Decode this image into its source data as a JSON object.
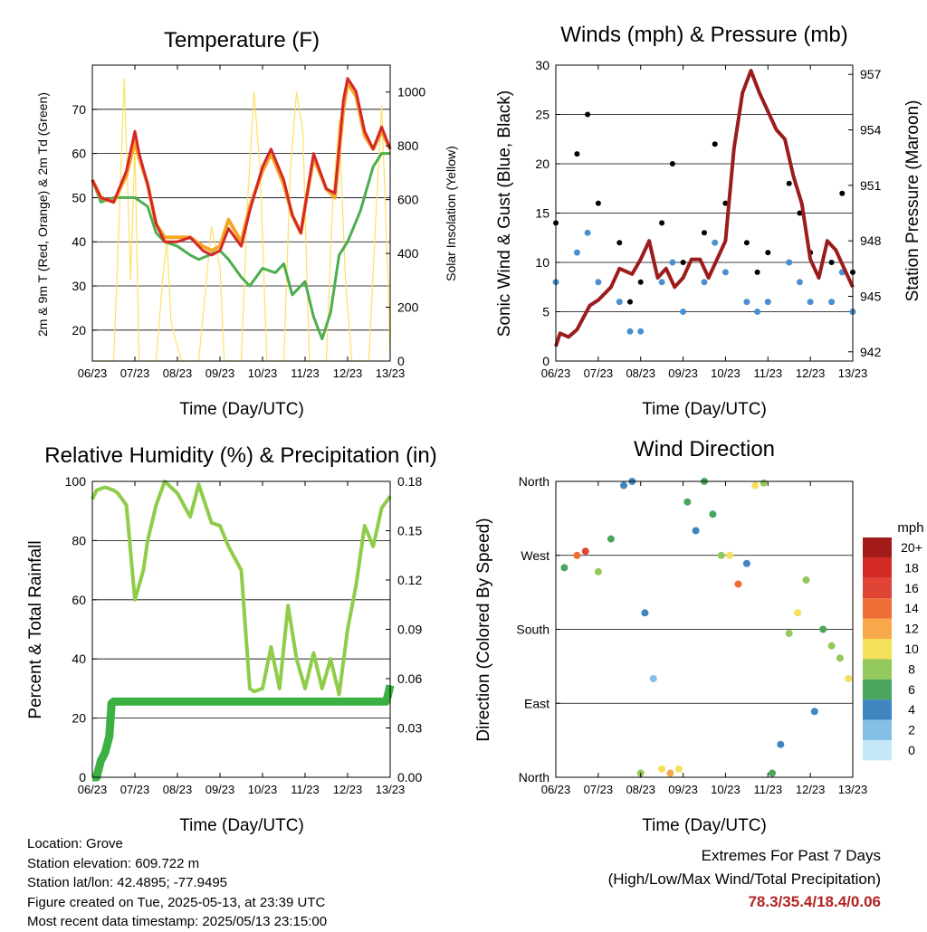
{
  "x_ticks": [
    "06/23",
    "07/23",
    "08/23",
    "09/23",
    "10/23",
    "11/23",
    "12/23",
    "13/23"
  ],
  "x_title": "Time (Day/UTC)",
  "charts": {
    "temperature": {
      "title": "Temperature (F)",
      "ylabel": "2m & 9m T (Red, Orange) & 2m Td (Green)",
      "y2label": "Solar Insolation (Yellow)",
      "yticks": [
        "20",
        "30",
        "40",
        "50",
        "60",
        "70"
      ],
      "y2ticks": [
        "0",
        "200",
        "400",
        "600",
        "800",
        "1000"
      ]
    },
    "winds": {
      "title": "Winds (mph) & Pressure (mb)",
      "ylabel": "Sonic Wind & Gust (Blue, Black)",
      "y2label": "Station Pressure (Maroon)",
      "yticks": [
        "0",
        "5",
        "10",
        "15",
        "20",
        "25",
        "30"
      ],
      "y2ticks": [
        "942",
        "945",
        "948",
        "951",
        "954",
        "957"
      ]
    },
    "humidity": {
      "title": "Relative Humidity (%) & Precipitation (in)",
      "ylabel": "Percent & Total Rainfall",
      "yticks": [
        "0",
        "20",
        "40",
        "60",
        "80",
        "100"
      ],
      "y2ticks": [
        "0.00",
        "0.03",
        "0.06",
        "0.09",
        "0.12",
        "0.15",
        "0.18"
      ]
    },
    "direction": {
      "title": "Wind Direction",
      "ylabel": "Direction (Colored By Speed)",
      "yticks": [
        "North",
        "East",
        "South",
        "West",
        "North"
      ],
      "legend_title": "mph",
      "legend_labels": [
        "20+",
        "18",
        "16",
        "14",
        "12",
        "10",
        "8",
        "6",
        "4",
        "2",
        "0"
      ],
      "legend_colors": [
        "#a31a1a",
        "#d42a25",
        "#e04434",
        "#ef6d37",
        "#f7a84a",
        "#f4e05a",
        "#93c95a",
        "#4aa55d",
        "#3f86c1",
        "#84c0e6",
        "#c6e7f7"
      ]
    }
  },
  "chart_data": [
    {
      "type": "line",
      "title": "Temperature (F)",
      "x_range_days": [
        6,
        13
      ],
      "ylim": [
        13,
        80
      ],
      "y2lim": [
        0,
        1100
      ],
      "series": [
        {
          "color": "#d62728",
          "x": [
            6.0,
            6.2,
            6.5,
            6.8,
            7.0,
            7.1,
            7.3,
            7.5,
            7.7,
            8.0,
            8.3,
            8.6,
            8.8,
            9.0,
            9.2,
            9.5,
            9.7,
            10.0,
            10.2,
            10.5,
            10.7,
            10.9,
            11.0,
            11.2,
            11.5,
            11.7,
            11.9,
            12.0,
            12.2,
            12.4,
            12.6,
            12.8,
            13.0
          ],
          "y": [
            54,
            50,
            49,
            56,
            65,
            60,
            53,
            44,
            40,
            40,
            41,
            38,
            37,
            38,
            43,
            39,
            47,
            57,
            61,
            54,
            46,
            42,
            48,
            60,
            52,
            51,
            72,
            77,
            74,
            65,
            61,
            66,
            61
          ]
        },
        {
          "color": "#f5a623",
          "x": [
            6.0,
            6.2,
            6.5,
            6.8,
            7.0,
            7.1,
            7.3,
            7.5,
            7.7,
            8.0,
            8.3,
            8.6,
            8.8,
            9.0,
            9.2,
            9.5,
            9.7,
            10.0,
            10.2,
            10.5,
            10.7,
            10.9,
            11.0,
            11.2,
            11.5,
            11.7,
            11.9,
            12.0,
            12.2,
            12.4,
            12.6,
            12.8,
            13.0
          ],
          "y": [
            54,
            50,
            49,
            55,
            63,
            59,
            53,
            44,
            41,
            41,
            41,
            39,
            38,
            39,
            45,
            40,
            48,
            56,
            60,
            53,
            46,
            42,
            48,
            59,
            52,
            50,
            70,
            76,
            73,
            64,
            61,
            65,
            61
          ]
        },
        {
          "color": "#4cae4c",
          "x": [
            6.0,
            6.2,
            6.5,
            7.0,
            7.3,
            7.5,
            7.7,
            8.0,
            8.3,
            8.5,
            9.0,
            9.2,
            9.5,
            9.7,
            10.0,
            10.3,
            10.5,
            10.7,
            11.0,
            11.2,
            11.4,
            11.6,
            11.8,
            12.0,
            12.3,
            12.6,
            12.8,
            13.0
          ],
          "y": [
            54,
            49,
            50,
            50,
            48,
            42,
            40,
            39,
            37,
            36,
            38,
            36,
            32,
            30,
            34,
            33,
            35,
            28,
            31,
            23,
            18,
            24,
            37,
            40,
            47,
            57,
            60,
            60
          ]
        },
        {
          "color": "#ffe066",
          "axis": "y2",
          "x": [
            6.0,
            6.15,
            6.5,
            6.6,
            6.75,
            6.9,
            7.0,
            7.1,
            7.5,
            7.65,
            7.75,
            7.85,
            8.0,
            8.1,
            8.5,
            8.65,
            8.8,
            9.0,
            9.1,
            9.5,
            9.65,
            9.8,
            9.95,
            10.1,
            10.5,
            10.65,
            10.8,
            10.95,
            11.1,
            11.5,
            11.65,
            11.8,
            11.95,
            12.1,
            12.5,
            12.65,
            12.8,
            12.95,
            13.0
          ],
          "y": [
            0,
            0,
            0,
            400,
            1050,
            300,
            800,
            0,
            0,
            300,
            450,
            150,
            50,
            0,
            0,
            250,
            500,
            350,
            0,
            0,
            600,
            1000,
            700,
            0,
            0,
            700,
            1000,
            850,
            0,
            0,
            600,
            900,
            300,
            0,
            0,
            500,
            950,
            300,
            0
          ]
        }
      ]
    },
    {
      "type": "scatter",
      "title": "Winds (mph) & Pressure (mb)",
      "x_range_days": [
        6,
        13
      ],
      "ylim": [
        0,
        30
      ],
      "y2lim": [
        941.5,
        957.5
      ],
      "series": [
        {
          "color": "#000000",
          "x": [
            6.0,
            6.5,
            6.75,
            7.0,
            7.5,
            7.75,
            8.0,
            8.5,
            8.75,
            9.0,
            9.5,
            9.75,
            10.0,
            10.5,
            10.75,
            11.0,
            11.5,
            11.75,
            12.0,
            12.5,
            12.75,
            13.0
          ],
          "y": [
            14,
            21,
            25,
            16,
            12,
            6,
            8,
            14,
            20,
            10,
            13,
            22,
            16,
            12,
            9,
            11,
            18,
            15,
            11,
            10,
            17,
            9
          ]
        },
        {
          "color": "#4a90d0",
          "x": [
            6.0,
            6.5,
            6.75,
            7.0,
            7.5,
            7.75,
            8.0,
            8.5,
            8.75,
            9.0,
            9.5,
            9.75,
            10.0,
            10.5,
            10.75,
            11.0,
            11.5,
            11.75,
            12.0,
            12.5,
            12.75,
            13.0
          ],
          "y": [
            8,
            11,
            13,
            8,
            6,
            3,
            3,
            8,
            10,
            5,
            8,
            12,
            9,
            6,
            5,
            6,
            10,
            8,
            6,
            6,
            9,
            5
          ]
        },
        {
          "color": "#9b1c1c",
          "type": "line",
          "axis": "y2",
          "x": [
            6.0,
            6.1,
            6.3,
            6.5,
            6.8,
            7.0,
            7.3,
            7.5,
            7.8,
            8.0,
            8.2,
            8.4,
            8.6,
            8.8,
            9.0,
            9.2,
            9.4,
            9.6,
            9.8,
            10.0,
            10.2,
            10.4,
            10.6,
            10.8,
            11.0,
            11.2,
            11.4,
            11.6,
            11.8,
            12.0,
            12.2,
            12.4,
            12.6,
            12.8,
            13.0
          ],
          "y": [
            942.3,
            943,
            942.8,
            943.2,
            944.5,
            944.8,
            945.5,
            946.5,
            946.2,
            947,
            948,
            946,
            946.5,
            945.5,
            946,
            947,
            947,
            946,
            947,
            948,
            953,
            956,
            957.2,
            956,
            955,
            954,
            953.5,
            951.5,
            950,
            947,
            946,
            948,
            947.5,
            946.5,
            945.5
          ]
        }
      ]
    },
    {
      "type": "line",
      "title": "Relative Humidity (%) & Precipitation (in)",
      "x_range_days": [
        6,
        13
      ],
      "ylim": [
        0,
        100
      ],
      "y2lim": [
        0,
        0.18
      ],
      "series": [
        {
          "color": "#8fcc4a",
          "x": [
            6.0,
            6.1,
            6.3,
            6.5,
            6.6,
            6.8,
            7.0,
            7.2,
            7.3,
            7.5,
            7.7,
            8.0,
            8.3,
            8.5,
            8.8,
            9.0,
            9.2,
            9.5,
            9.7,
            9.8,
            10.0,
            10.2,
            10.4,
            10.6,
            10.8,
            11.0,
            11.2,
            11.4,
            11.6,
            11.8,
            12.0,
            12.2,
            12.4,
            12.6,
            12.8,
            13.0
          ],
          "y": [
            94,
            97,
            98,
            97,
            96,
            92,
            60,
            70,
            80,
            92,
            100,
            96,
            88,
            99,
            86,
            85,
            78,
            70,
            30,
            29,
            30,
            44,
            30,
            58,
            40,
            30,
            42,
            30,
            40,
            28,
            50,
            65,
            85,
            78,
            91,
            95
          ]
        },
        {
          "color": "#3cb043",
          "axis": "y2",
          "x": [
            6.0,
            6.1,
            6.2,
            6.3,
            6.4,
            6.45,
            6.5,
            7.0,
            8.0,
            9.0,
            10.0,
            11.0,
            12.0,
            12.9,
            12.95,
            13.0
          ],
          "y": [
            0.0,
            0.0,
            0.01,
            0.015,
            0.025,
            0.045,
            0.046,
            0.046,
            0.046,
            0.046,
            0.046,
            0.046,
            0.046,
            0.046,
            0.05,
            0.056
          ]
        }
      ]
    },
    {
      "type": "scatter",
      "title": "Wind Direction",
      "x_range_days": [
        6,
        13
      ],
      "ylim": [
        0,
        360
      ],
      "series": [
        {
          "x": [
            6.2,
            6.5,
            6.7,
            7.0,
            7.3,
            7.6,
            7.8,
            8.0,
            8.1,
            8.3,
            8.5,
            8.7,
            8.9,
            9.1,
            9.3,
            9.5,
            9.7,
            9.9,
            10.1,
            10.3,
            10.5,
            10.7,
            10.9,
            11.1,
            11.3,
            11.5,
            11.7,
            11.9,
            12.1,
            12.3,
            12.5,
            12.7,
            12.9
          ],
          "y": [
            255,
            270,
            275,
            250,
            290,
            355,
            360,
            5,
            200,
            120,
            10,
            5,
            10,
            335,
            300,
            360,
            320,
            270,
            270,
            235,
            260,
            355,
            358,
            5,
            40,
            175,
            200,
            240,
            80,
            180,
            160,
            145,
            120
          ],
          "speed": [
            5,
            14,
            16,
            8,
            6,
            4,
            4,
            8,
            4,
            2,
            10,
            12,
            10,
            6,
            4,
            6,
            6,
            8,
            10,
            14,
            4,
            10,
            8,
            6,
            4,
            8,
            10,
            8,
            4,
            6,
            8,
            8,
            10
          ]
        }
      ]
    }
  ],
  "info": {
    "location": "Location: Grove",
    "elevation": "Station elevation: 609.722 m",
    "latlon": "Station lat/lon: 42.4895; -77.9495",
    "created": "Figure created on Tue, 2025-05-13, at 23:39 UTC",
    "recent": "Most recent data timestamp: 2025/05/13 23:15:00"
  },
  "extremes": {
    "title": "Extremes For Past 7 Days",
    "subtitle": "(High/Low/Max Wind/Total Precipitation)",
    "values": "78.3/35.4/18.4/0.06"
  }
}
